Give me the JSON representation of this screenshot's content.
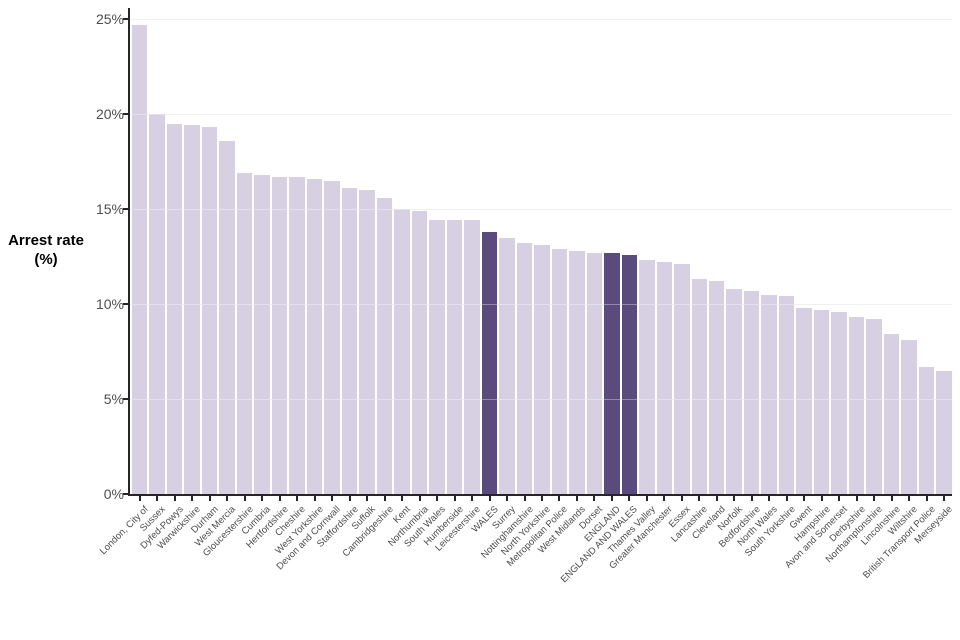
{
  "chart_data": {
    "type": "bar",
    "title": "",
    "xlabel": "",
    "ylabel": "Arrest rate (%)",
    "ylim": [
      0,
      25
    ],
    "y_ticks": [
      0,
      5,
      10,
      15,
      20,
      25
    ],
    "y_tick_labels": [
      "0%",
      "5%",
      "10%",
      "15%",
      "20%",
      "25%"
    ],
    "grid": "horizontal-only",
    "legend": "none",
    "bar_sort": "descending",
    "categories": [
      "London, City of",
      "Sussex",
      "Dyfed-Powys",
      "Warwickshire",
      "Durham",
      "West Mercia",
      "Gloucestershire",
      "Cumbria",
      "Hertfordshire",
      "Cheshire",
      "West Yorkshire",
      "Devon and Cornwall",
      "Staffordshire",
      "Suffolk",
      "Cambridgeshire",
      "Kent",
      "Northumbria",
      "South Wales",
      "Humberside",
      "Leicestershire",
      "WALES",
      "Surrey",
      "Nottinghamshire",
      "North Yorkshire",
      "Metropolitan Police",
      "West Midlands",
      "Dorset",
      "ENGLAND",
      "ENGLAND AND WALES",
      "Thames Valley",
      "Greater Manchester",
      "Essex",
      "Lancashire",
      "Cleveland",
      "Norfolk",
      "Bedfordshire",
      "North Wales",
      "South Yorkshire",
      "Gwent",
      "Hampshire",
      "Avon and Somerset",
      "Derbyshire",
      "Northamptonshire",
      "Lincolnshire",
      "Wiltshire",
      "British Transport Police",
      "Merseyside"
    ],
    "values": [
      24.7,
      20.0,
      19.5,
      19.4,
      19.3,
      18.6,
      16.9,
      16.8,
      16.7,
      16.7,
      16.6,
      16.5,
      16.1,
      16.0,
      15.6,
      15.0,
      14.9,
      14.4,
      14.4,
      14.4,
      13.8,
      13.5,
      13.2,
      13.1,
      12.9,
      12.8,
      12.7,
      12.7,
      12.6,
      12.3,
      12.2,
      12.1,
      11.3,
      11.2,
      10.8,
      10.7,
      10.5,
      10.4,
      9.8,
      9.7,
      9.6,
      9.3,
      9.2,
      8.4,
      8.1,
      6.7,
      6.5
    ],
    "highlighted_categories": [
      "WALES",
      "ENGLAND",
      "ENGLAND AND WALES"
    ],
    "colors": {
      "bar": "#d7d0e3",
      "bar_highlight": "#5b4a7c",
      "grid": "#e8e8e8",
      "axis": "#262626",
      "tick_label": "#4d4d4d",
      "axis_title": "#000000",
      "background": "#ffffff"
    }
  }
}
